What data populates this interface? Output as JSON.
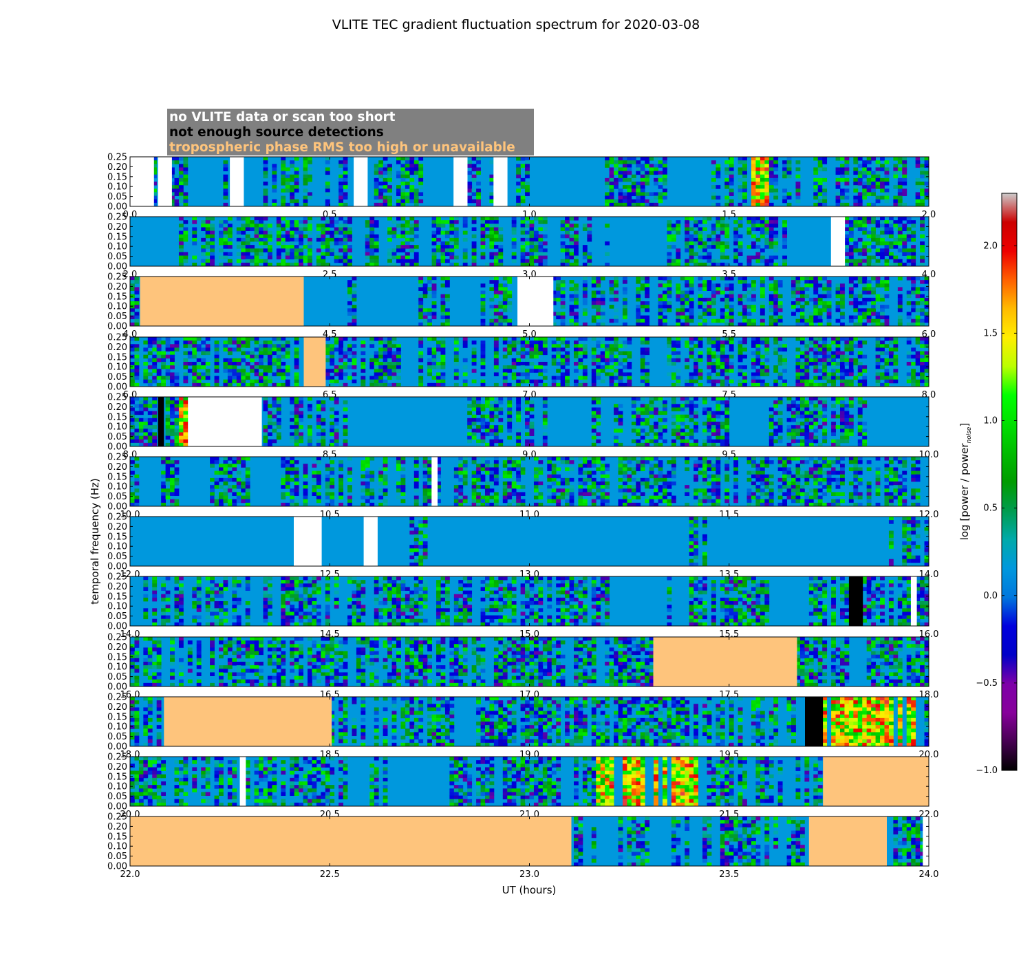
{
  "chart_data": {
    "type": "heatmap",
    "title": "VLITE TEC gradient fluctuation spectrum for 2020-03-08",
    "xlabel": "UT (hours)",
    "ylabel": "temporal frequency (Hz)",
    "colorbar": {
      "label": "log [power / power",
      "label_sub": "noise",
      "label_end": "]",
      "range": [
        -1.0,
        2.3
      ],
      "ticks": [
        "−1.0",
        "−0.5",
        "0.0",
        "0.5",
        "1.0",
        "1.5",
        "2.0"
      ],
      "tick_values": [
        -1.0,
        -0.5,
        0.0,
        0.5,
        1.0,
        1.5,
        2.0
      ],
      "colormap": "nipy_spectral"
    },
    "ylim": [
      0.0,
      0.25
    ],
    "y_ticks": [
      "0.00",
      "0.05",
      "0.10",
      "0.15",
      "0.20",
      "0.25"
    ],
    "y_tick_values": [
      0.0,
      0.05,
      0.1,
      0.15,
      0.2,
      0.25
    ],
    "legend": {
      "placement": "top-left",
      "entries": [
        {
          "label": "no VLITE data or scan too short",
          "color": "#ffffff"
        },
        {
          "label": "not enough source detections",
          "color": "#000000"
        },
        {
          "label": "tropospheric phase RMS too high or unavailable",
          "color": "#fec47c"
        }
      ]
    },
    "background_value": 0.0,
    "panels": [
      {
        "xlim": [
          0.0,
          2.0
        ],
        "x_ticks": [
          "0.0",
          "0.5",
          "1.0",
          "1.5",
          "2.0"
        ],
        "masks": [
          {
            "start": 0.0,
            "end": 0.06,
            "flag": "no_data"
          },
          {
            "start": 0.07,
            "end": 0.105,
            "flag": "no_data"
          },
          {
            "start": 0.25,
            "end": 0.285,
            "flag": "no_data"
          },
          {
            "start": 0.56,
            "end": 0.595,
            "flag": "no_data"
          },
          {
            "start": 0.81,
            "end": 0.845,
            "flag": "no_data"
          },
          {
            "start": 0.91,
            "end": 0.945,
            "flag": "no_data"
          }
        ],
        "quiet": [
          {
            "start": 0.16,
            "end": 0.23
          },
          {
            "start": 0.73,
            "end": 0.81
          },
          {
            "start": 1.0,
            "end": 1.18
          },
          {
            "start": 1.35,
            "end": 1.43
          }
        ],
        "hot": [
          {
            "start": 1.55,
            "end": 1.6
          }
        ]
      },
      {
        "xlim": [
          2.0,
          4.0
        ],
        "x_ticks": [
          "2.0",
          "2.5",
          "3.0",
          "3.5",
          "4.0"
        ],
        "masks": [
          {
            "start": 3.755,
            "end": 3.79,
            "flag": "no_data"
          }
        ],
        "quiet": [
          {
            "start": 2.0,
            "end": 2.12
          },
          {
            "start": 3.2,
            "end": 3.35
          },
          {
            "start": 3.65,
            "end": 3.755
          }
        ],
        "hot": []
      },
      {
        "xlim": [
          4.0,
          6.0
        ],
        "x_ticks": [
          "4.0",
          "4.5",
          "5.0",
          "5.5",
          "6.0"
        ],
        "masks": [
          {
            "start": 4.025,
            "end": 4.435,
            "flag": "troposphere"
          },
          {
            "start": 4.97,
            "end": 5.06,
            "flag": "no_data"
          }
        ],
        "quiet": [
          {
            "start": 4.435,
            "end": 4.55
          },
          {
            "start": 4.57,
            "end": 4.72
          },
          {
            "start": 4.8,
            "end": 4.88
          }
        ],
        "hot": []
      },
      {
        "xlim": [
          6.0,
          8.0
        ],
        "x_ticks": [
          "6.0",
          "6.5",
          "7.0",
          "7.5",
          "8.0"
        ],
        "masks": [
          {
            "start": 6.435,
            "end": 6.49,
            "flag": "troposphere"
          }
        ],
        "quiet": [
          {
            "start": 6.68,
            "end": 6.72
          },
          {
            "start": 7.3,
            "end": 7.35
          }
        ],
        "hot": []
      },
      {
        "xlim": [
          8.0,
          10.0
        ],
        "x_ticks": [
          "8.0",
          "8.5",
          "9.0",
          "9.5",
          "10.0"
        ],
        "masks": [
          {
            "start": 8.07,
            "end": 8.085,
            "flag": "no_detections"
          },
          {
            "start": 8.145,
            "end": 8.33,
            "flag": "no_data"
          }
        ],
        "quiet": [
          {
            "start": 8.55,
            "end": 8.68
          },
          {
            "start": 8.68,
            "end": 8.85
          },
          {
            "start": 9.06,
            "end": 9.15
          },
          {
            "start": 9.5,
            "end": 9.6
          },
          {
            "start": 9.85,
            "end": 10.0
          }
        ],
        "hot": [
          {
            "start": 8.12,
            "end": 8.14
          }
        ]
      },
      {
        "xlim": [
          10.0,
          12.0
        ],
        "x_ticks": [
          "10.0",
          "10.5",
          "11.0",
          "11.5",
          "12.0"
        ],
        "masks": [
          {
            "start": 10.755,
            "end": 10.77,
            "flag": "no_data"
          }
        ],
        "quiet": [
          {
            "start": 10.02,
            "end": 10.07
          },
          {
            "start": 10.12,
            "end": 10.2
          },
          {
            "start": 10.3,
            "end": 10.38
          }
        ],
        "hot": []
      },
      {
        "xlim": [
          12.0,
          14.0
        ],
        "x_ticks": [
          "12.0",
          "12.5",
          "13.0",
          "13.5",
          "14.0"
        ],
        "masks": [
          {
            "start": 12.41,
            "end": 12.48,
            "flag": "no_data"
          },
          {
            "start": 12.585,
            "end": 12.62,
            "flag": "no_data"
          }
        ],
        "quiet": [
          {
            "start": 12.0,
            "end": 12.41
          },
          {
            "start": 12.48,
            "end": 12.585
          },
          {
            "start": 12.62,
            "end": 12.7
          },
          {
            "start": 12.75,
            "end": 13.4
          },
          {
            "start": 13.45,
            "end": 13.9
          }
        ],
        "hot": []
      },
      {
        "xlim": [
          14.0,
          16.0
        ],
        "x_ticks": [
          "14.0",
          "14.5",
          "15.0",
          "15.5",
          "16.0"
        ],
        "masks": [
          {
            "start": 15.8,
            "end": 15.835,
            "flag": "no_detections"
          },
          {
            "start": 15.955,
            "end": 15.97,
            "flag": "no_data"
          }
        ],
        "quiet": [
          {
            "start": 15.2,
            "end": 15.35
          },
          {
            "start": 15.6,
            "end": 15.7
          }
        ],
        "hot": []
      },
      {
        "xlim": [
          16.0,
          18.0
        ],
        "x_ticks": [
          "16.0",
          "16.5",
          "17.0",
          "17.5",
          "18.0"
        ],
        "masks": [
          {
            "start": 17.31,
            "end": 17.67,
            "flag": "troposphere"
          }
        ],
        "quiet": [
          {
            "start": 17.8,
            "end": 17.85
          }
        ],
        "hot": []
      },
      {
        "xlim": [
          18.0,
          20.0
        ],
        "x_ticks": [
          "18.0",
          "18.5",
          "19.0",
          "19.5",
          "20.0"
        ],
        "masks": [
          {
            "start": 18.085,
            "end": 18.505,
            "flag": "troposphere"
          },
          {
            "start": 19.69,
            "end": 19.735,
            "flag": "no_detections"
          }
        ],
        "quiet": [
          {
            "start": 18.82,
            "end": 18.87
          }
        ],
        "hot": [
          {
            "start": 19.735,
            "end": 19.97
          }
        ]
      },
      {
        "xlim": [
          20.0,
          22.0
        ],
        "x_ticks": [
          "20.0",
          "20.5",
          "21.0",
          "21.5",
          "22.0"
        ],
        "masks": [
          {
            "start": 20.275,
            "end": 20.29,
            "flag": "no_data"
          },
          {
            "start": 21.735,
            "end": 22.0,
            "flag": "troposphere"
          }
        ],
        "quiet": [
          {
            "start": 20.55,
            "end": 20.6
          },
          {
            "start": 20.65,
            "end": 20.8
          }
        ],
        "hot": [
          {
            "start": 21.17,
            "end": 21.45
          }
        ]
      },
      {
        "xlim": [
          22.0,
          24.0
        ],
        "x_ticks": [
          "22.0",
          "22.5",
          "23.0",
          "23.5",
          "24.0"
        ],
        "masks": [
          {
            "start": 22.0,
            "end": 23.105,
            "flag": "troposphere"
          },
          {
            "start": 23.7,
            "end": 23.895,
            "flag": "troposphere"
          },
          {
            "start": 23.985,
            "end": 24.0,
            "flag": "no_data"
          }
        ],
        "quiet": [
          {
            "start": 23.17,
            "end": 23.22
          },
          {
            "start": 23.3,
            "end": 23.35
          }
        ],
        "hot": []
      }
    ]
  }
}
